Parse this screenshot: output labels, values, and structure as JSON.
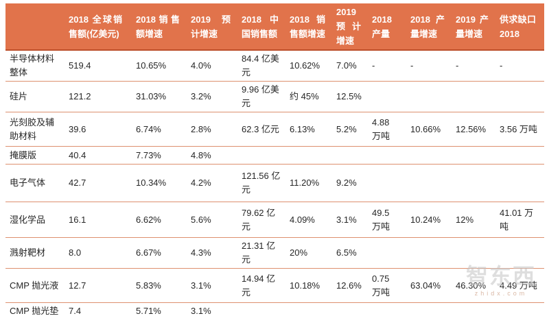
{
  "chart_data": {
    "type": "table",
    "title": "",
    "columns": [
      "",
      "2018 全球销售额(亿美元)",
      "2018销售额增速",
      "2019 预计增速",
      "2018 中国销售额",
      "2018 销售额增速",
      "2019 预计增速",
      "2018 产量",
      "2018 产量增速",
      "2019产量增速",
      "供求缺口 2018"
    ],
    "rows": [
      [
        "半导体材料整体",
        "519.4",
        "10.65%",
        "4.0%",
        "84.4 亿美元",
        "10.62%",
        "7.0%",
        "-",
        "-",
        "-",
        "-"
      ],
      [
        "硅片",
        "121.2",
        "31.03%",
        "3.2%",
        "9.96 亿美元",
        "约 45%",
        "12.5%",
        "",
        "",
        "",
        ""
      ],
      [
        "光刻胶及辅助材料",
        "39.6",
        "6.74%",
        "2.8%",
        "62.3 亿元",
        "6.13%",
        "5.2%",
        "4.88 万吨",
        "10.66%",
        "12.56%",
        "3.56 万吨"
      ],
      [
        "掩膜版",
        "40.4",
        "7.73%",
        "4.8%",
        "",
        "",
        "",
        "",
        "",
        "",
        ""
      ],
      [
        "电子气体",
        "42.7",
        "10.34%",
        "4.2%",
        "121.56 亿元",
        "11.20%",
        "9.2%",
        "",
        "",
        "",
        ""
      ],
      [
        "湿化学品",
        "16.1",
        "6.62%",
        "5.6%",
        "79.62 亿元",
        "4.09%",
        "3.1%",
        "49.5 万吨",
        "10.24%",
        "12%",
        "41.01 万吨"
      ],
      [
        "溅射靶材",
        "8.0",
        "6.67%",
        "4.3%",
        "21.31 亿元",
        "20%",
        "6.5%",
        "",
        "",
        "",
        ""
      ],
      [
        "CMP 抛光液",
        "12.7",
        "5.83%",
        "3.1%",
        "14.94 亿元",
        "10.18%",
        "12.6%",
        "0.75 万吨",
        "63.04%",
        "46.30%",
        "4.49 万吨"
      ],
      [
        "CMP 抛光垫",
        "7.4",
        "5.71%",
        "3.1%",
        "",
        "",
        "",
        "",
        "",
        "",
        ""
      ]
    ],
    "layout_hints": {
      "header_background": "orange",
      "row_separators": true,
      "grid_vertical_lines": false
    }
  },
  "watermark": {
    "logo_text": "智东西",
    "site_text": "zhidx.com"
  },
  "colors": {
    "header_bg": "#E1734B",
    "header_text": "#FFFFFF",
    "row_line": "#DD8F6E",
    "header_line": "#BC4F2B",
    "body_text": "#262626"
  }
}
